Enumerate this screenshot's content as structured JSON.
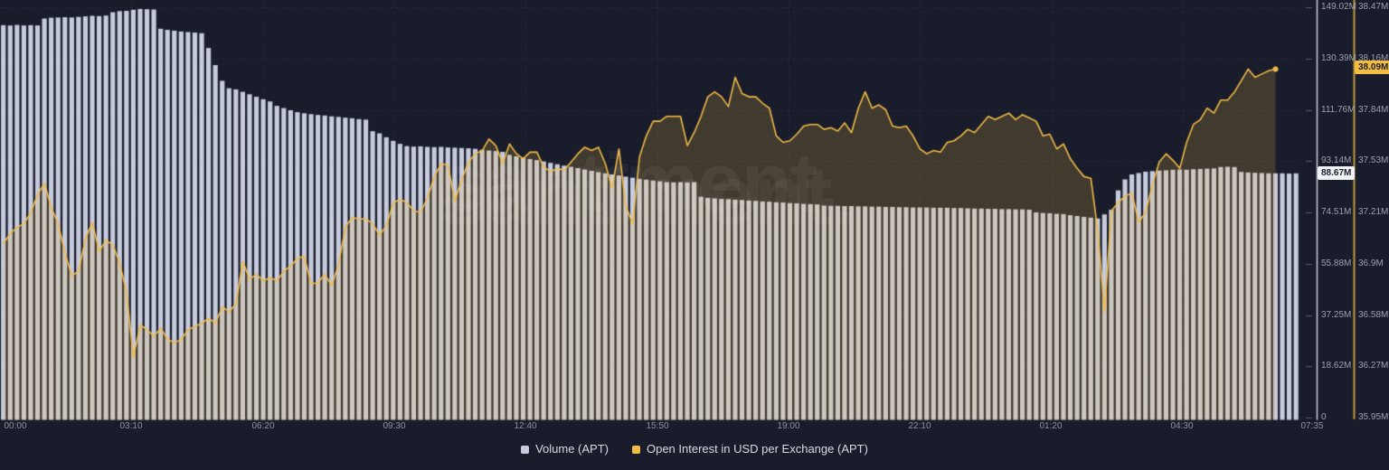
{
  "chart": {
    "watermark": "santiment.",
    "colors": {
      "background": "#191d2b",
      "volume_bar": "#c6cbde",
      "oi_line": "#f1ba45",
      "oi_fill": "rgba(238,186,68,0.19)",
      "grid": "rgba(255,255,255,0.055)",
      "axis_tick_dash": "rgba(255,255,255,0.28)",
      "axis_line_volume": "#c9cedb",
      "axis_line_oi": "#bf9a3e",
      "tick_text": "#9aa0ad",
      "badge_volume_bg": "#f2f3f6",
      "badge_oi_bg": "#f4bf41",
      "watermark_color": "rgba(255,255,255,0.05)"
    }
  },
  "chart_data": {
    "type": "mixed",
    "grid": true,
    "legend_position": "bottom-center",
    "x_axis": {
      "start": "00:00",
      "end": "07:35",
      "interval_minutes": 10,
      "tick_labels": [
        "00:00",
        "03:10",
        "06:20",
        "09:30",
        "12:40",
        "15:50",
        "19:00",
        "22:10",
        "01:20",
        "04:30",
        "07:35"
      ]
    },
    "left_axis": {
      "title": "Volume (APT)",
      "min": 0,
      "max": 149.02,
      "unit": "M",
      "ticks": [
        "149.02M",
        "130.39M",
        "111.76M",
        "93.14M",
        "74.51M",
        "55.88M",
        "37.25M",
        "18.62M",
        "0"
      ]
    },
    "right_axis": {
      "title": "Open Interest in USD per Exchange (APT)",
      "min": 35.95,
      "max": 38.47,
      "unit": "M",
      "ticks": [
        "38.47M",
        "38.16M",
        "37.84M",
        "37.53M",
        "37.21M",
        "36.9M",
        "36.58M",
        "36.27M",
        "35.95M"
      ]
    },
    "current_values": {
      "volume": "88.67M",
      "open_interest": "38.09M"
    },
    "series": [
      {
        "name": "Volume (APT)",
        "type": "bar",
        "axis": "left",
        "unit": "M",
        "color": "#c6cbde",
        "values": [
          142.5,
          142.4,
          142.6,
          142.4,
          142.5,
          142.4,
          144.9,
          145.2,
          145.3,
          145.4,
          145.3,
          145.5,
          145.7,
          145.9,
          145.8,
          146.0,
          147.2,
          147.6,
          147.7,
          148.1,
          148.4,
          148.3,
          148.2,
          141.2,
          140.8,
          140.5,
          140.2,
          140.0,
          139.8,
          139.6,
          134.2,
          128.0,
          122.3,
          119.6,
          119.2,
          118.3,
          117.4,
          116.5,
          115.6,
          114.8,
          113.2,
          112.4,
          111.6,
          110.9,
          110.5,
          110.2,
          109.9,
          109.7,
          109.4,
          109.2,
          108.9,
          108.7,
          108.4,
          108.2,
          104.0,
          103.2,
          101.8,
          100.5,
          99.4,
          98.6,
          98.4,
          98.5,
          98.3,
          98.2,
          98.3,
          98.1,
          98.0,
          97.9,
          97.8,
          97.6,
          97.3,
          97.0,
          96.8,
          96.5,
          95.4,
          94.9,
          94.4,
          93.9,
          93.5,
          93.0,
          92.5,
          92.0,
          91.5,
          91.1,
          90.6,
          90.1,
          89.6,
          89.1,
          88.7,
          88.3,
          87.9,
          87.5,
          87.1,
          86.7,
          86.4,
          86.1,
          85.8,
          85.5,
          85.4,
          85.5,
          85.4,
          85.5,
          80.2,
          79.8,
          79.6,
          79.4,
          79.3,
          79.1,
          79.0,
          78.8,
          78.7,
          78.5,
          78.4,
          78.2,
          78.1,
          77.9,
          77.8,
          77.6,
          77.5,
          77.4,
          77.0,
          76.9,
          76.9,
          76.8,
          76.8,
          76.7,
          76.7,
          76.6,
          76.6,
          76.5,
          76.5,
          76.4,
          76.4,
          76.3,
          76.3,
          76.3,
          76.2,
          76.2,
          76.2,
          76.1,
          76.1,
          76.0,
          75.9,
          75.9,
          75.8,
          75.8,
          75.7,
          75.7,
          75.6,
          75.6,
          75.5,
          74.5,
          74.3,
          74.2,
          74.0,
          73.9,
          73.5,
          73.2,
          72.9,
          72.6,
          72.3,
          73.8,
          75.5,
          82.5,
          86.5,
          88.3,
          88.8,
          89.3,
          89.5,
          89.7,
          89.8,
          90.0,
          90.1,
          90.0,
          90.2,
          90.3,
          90.4,
          90.5,
          91.0,
          91.1,
          91.0,
          89.2,
          89.0,
          88.9,
          88.8,
          88.7,
          88.7,
          88.7,
          88.6,
          88.7
        ]
      },
      {
        "name": "Open Interest in USD per Exchange (APT)",
        "type": "area-line",
        "axis": "right",
        "unit": "M",
        "color": "#f1ba45",
        "values": [
          37.02,
          37.08,
          37.12,
          37.14,
          37.21,
          37.32,
          37.39,
          37.24,
          37.14,
          36.96,
          36.82,
          36.85,
          37.05,
          37.15,
          36.97,
          37.04,
          37.01,
          36.9,
          36.72,
          36.32,
          36.52,
          36.49,
          36.45,
          36.5,
          36.43,
          36.41,
          36.43,
          36.49,
          36.51,
          36.53,
          36.56,
          36.53,
          36.63,
          36.6,
          36.65,
          36.91,
          36.8,
          36.83,
          36.79,
          36.81,
          36.79,
          36.85,
          36.88,
          36.93,
          36.94,
          36.77,
          36.78,
          36.83,
          36.76,
          36.89,
          37.12,
          37.18,
          37.17,
          37.17,
          37.14,
          37.07,
          37.13,
          37.27,
          37.29,
          37.27,
          37.22,
          37.21,
          37.3,
          37.43,
          37.51,
          37.5,
          37.28,
          37.41,
          37.52,
          37.57,
          37.59,
          37.66,
          37.62,
          37.51,
          37.63,
          37.57,
          37.54,
          37.58,
          37.58,
          37.49,
          37.46,
          37.48,
          37.47,
          37.52,
          37.57,
          37.61,
          37.59,
          37.61,
          37.51,
          37.36,
          37.6,
          37.25,
          37.14,
          37.55,
          37.68,
          37.77,
          37.77,
          37.8,
          37.8,
          37.8,
          37.62,
          37.7,
          37.8,
          37.92,
          37.95,
          37.92,
          37.86,
          38.04,
          37.94,
          37.92,
          37.92,
          37.88,
          37.85,
          37.68,
          37.64,
          37.65,
          37.69,
          37.74,
          37.75,
          37.75,
          37.72,
          37.73,
          37.71,
          37.76,
          37.7,
          37.85,
          37.95,
          37.85,
          37.87,
          37.84,
          37.74,
          37.73,
          37.74,
          37.68,
          37.6,
          37.57,
          37.59,
          37.58,
          37.64,
          37.65,
          37.68,
          37.72,
          37.7,
          37.75,
          37.8,
          37.78,
          37.8,
          37.82,
          37.78,
          37.81,
          37.79,
          37.77,
          37.68,
          37.69,
          37.6,
          37.63,
          37.54,
          37.48,
          37.43,
          37.42,
          37.1,
          36.6,
          37.22,
          37.27,
          37.31,
          37.33,
          37.15,
          37.21,
          37.38,
          37.52,
          37.57,
          37.53,
          37.48,
          37.64,
          37.75,
          37.78,
          37.85,
          37.82,
          37.9,
          37.9,
          37.95,
          38.02,
          38.09,
          38.04,
          38.06,
          38.08,
          38.09,
          null,
          null,
          null
        ]
      }
    ]
  }
}
